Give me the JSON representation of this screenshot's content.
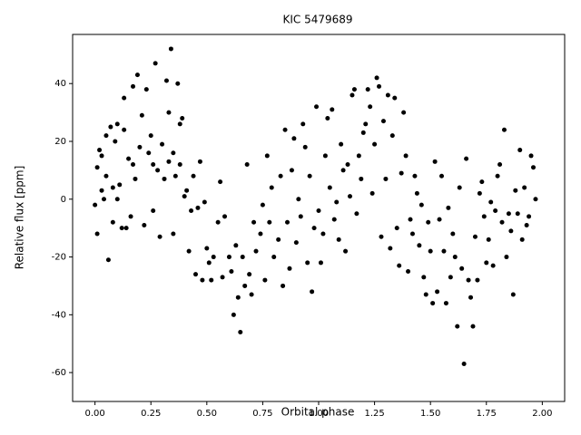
{
  "chart_data": {
    "type": "scatter",
    "title": "KIC 5479689",
    "x_label": "Orbital phase",
    "y_label": "Relative flux [ppm]",
    "color": "#000000",
    "x": [
      0.0,
      0.01,
      0.01,
      0.02,
      0.03,
      0.03,
      0.04,
      0.05,
      0.05,
      0.06,
      0.07,
      0.08,
      0.08,
      0.09,
      0.1,
      0.1,
      0.11,
      0.12,
      0.13,
      0.13,
      0.14,
      0.15,
      0.16,
      0.17,
      0.17,
      0.18,
      0.19,
      0.2,
      0.21,
      0.22,
      0.23,
      0.24,
      0.25,
      0.26,
      0.26,
      0.27,
      0.28,
      0.29,
      0.3,
      0.31,
      0.32,
      0.33,
      0.33,
      0.34,
      0.35,
      0.35,
      0.36,
      0.37,
      0.38,
      0.38,
      0.39,
      0.4,
      0.41,
      0.42,
      0.43,
      0.44,
      0.45,
      0.46,
      0.47,
      0.48,
      0.49,
      0.5,
      0.51,
      0.52,
      0.53,
      0.55,
      0.56,
      0.57,
      0.58,
      0.6,
      0.61,
      0.62,
      0.63,
      0.64,
      0.65,
      0.66,
      0.67,
      0.68,
      0.69,
      0.7,
      0.71,
      0.72,
      0.74,
      0.75,
      0.76,
      0.77,
      0.78,
      0.79,
      0.8,
      0.82,
      0.83,
      0.84,
      0.85,
      0.86,
      0.87,
      0.88,
      0.89,
      0.9,
      0.91,
      0.92,
      0.93,
      0.94,
      0.95,
      0.96,
      0.97,
      0.98,
      0.99,
      1.0,
      1.01,
      1.02,
      1.03,
      1.04,
      1.05,
      1.06,
      1.07,
      1.08,
      1.09,
      1.1,
      1.11,
      1.12,
      1.13,
      1.14,
      1.15,
      1.16,
      1.17,
      1.18,
      1.19,
      1.2,
      1.21,
      1.22,
      1.23,
      1.24,
      1.25,
      1.26,
      1.27,
      1.28,
      1.29,
      1.3,
      1.31,
      1.32,
      1.33,
      1.34,
      1.35,
      1.36,
      1.37,
      1.38,
      1.39,
      1.4,
      1.41,
      1.42,
      1.43,
      1.44,
      1.45,
      1.46,
      1.47,
      1.48,
      1.49,
      1.5,
      1.51,
      1.52,
      1.53,
      1.54,
      1.55,
      1.56,
      1.57,
      1.58,
      1.59,
      1.6,
      1.61,
      1.62,
      1.63,
      1.64,
      1.65,
      1.66,
      1.67,
      1.68,
      1.69,
      1.7,
      1.71,
      1.72,
      1.73,
      1.74,
      1.75,
      1.76,
      1.77,
      1.78,
      1.79,
      1.8,
      1.81,
      1.82,
      1.83,
      1.84,
      1.85,
      1.86,
      1.87,
      1.88,
      1.89,
      1.9,
      1.91,
      1.92,
      1.93,
      1.94,
      1.95,
      1.96,
      1.97
    ],
    "y": [
      -2,
      -12,
      11,
      17,
      3,
      15,
      0,
      22,
      8,
      -21,
      25,
      4,
      -8,
      20,
      26,
      0,
      5,
      -10,
      35,
      24,
      -10,
      14,
      -6,
      39,
      12,
      7,
      43,
      18,
      29,
      -9,
      38,
      16,
      22,
      -4,
      12,
      47,
      10,
      -13,
      19,
      7,
      41,
      13,
      30,
      52,
      -12,
      16,
      8,
      40,
      26,
      12,
      28,
      1,
      3,
      -18,
      -4,
      8,
      -26,
      -3,
      13,
      -28,
      -1,
      -17,
      -22,
      -28,
      -20,
      -8,
      6,
      -27,
      -6,
      -20,
      -25,
      -40,
      -16,
      -34,
      -46,
      -20,
      -30,
      12,
      -26,
      -33,
      -8,
      -18,
      -12,
      -2,
      -28,
      15,
      -8,
      4,
      -20,
      -14,
      8,
      -30,
      24,
      -8,
      -24,
      10,
      21,
      -15,
      0,
      -6,
      26,
      18,
      -22,
      8,
      -32,
      -10,
      32,
      -4,
      -22,
      -12,
      15,
      28,
      4,
      31,
      -7,
      -1,
      -14,
      19,
      10,
      -18,
      12,
      1,
      36,
      38,
      -5,
      15,
      7,
      23,
      26,
      38,
      32,
      2,
      19,
      42,
      39,
      -13,
      27,
      7,
      36,
      -17,
      22,
      35,
      -10,
      -23,
      9,
      30,
      15,
      -25,
      -7,
      -12,
      8,
      2,
      -16,
      -2,
      -27,
      -33,
      -8,
      -18,
      -36,
      13,
      -32,
      -7,
      8,
      -18,
      -36,
      -3,
      -27,
      -12,
      -20,
      -44,
      4,
      -24,
      -57,
      14,
      -28,
      -34,
      -44,
      -13,
      -28,
      2,
      6,
      -6,
      -22,
      -14,
      -1,
      -23,
      -4,
      8,
      12,
      -8,
      24,
      -20,
      -5,
      -11,
      -33,
      3,
      -5,
      17,
      -14,
      4,
      -9,
      -6,
      15,
      11,
      0
    ],
    "xlim": [
      -0.1,
      2.1
    ],
    "ylim": [
      -70,
      57
    ],
    "xticks": [
      {
        "value": 0,
        "label": "0.00"
      },
      {
        "value": 0.25,
        "label": "0.25"
      },
      {
        "value": 0.5,
        "label": "0.50"
      },
      {
        "value": 0.75,
        "label": "0.75"
      },
      {
        "value": 1,
        "label": "1.00"
      },
      {
        "value": 1.25,
        "label": "1.25"
      },
      {
        "value": 1.5,
        "label": "1.50"
      },
      {
        "value": 1.75,
        "label": "1.75"
      },
      {
        "value": 2,
        "label": "2.00"
      }
    ],
    "yticks": [
      -60,
      -40,
      -20,
      0,
      20,
      40
    ]
  }
}
